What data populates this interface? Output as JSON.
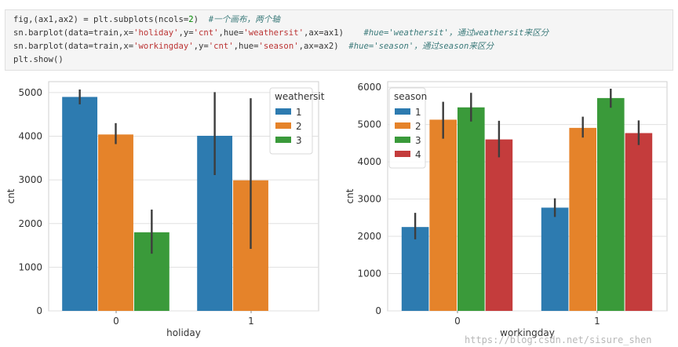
{
  "code": {
    "lines": [
      {
        "segments": [
          {
            "t": "fig,(ax1,ax2) = plt.subplots(ncols=",
            "c": ""
          },
          {
            "t": "2",
            "c": "num"
          },
          {
            "t": ")  ",
            "c": ""
          },
          {
            "t": "#一个画布，两个轴",
            "c": "cm"
          }
        ]
      },
      {
        "segments": [
          {
            "t": "sn.barplot(data=train,x=",
            "c": ""
          },
          {
            "t": "'holiday'",
            "c": "str"
          },
          {
            "t": ",y=",
            "c": ""
          },
          {
            "t": "'cnt'",
            "c": "str"
          },
          {
            "t": ",hue=",
            "c": ""
          },
          {
            "t": "'weathersit'",
            "c": "str"
          },
          {
            "t": ",ax=ax1)    ",
            "c": ""
          },
          {
            "t": "#hue='weathersit'，通过weathersit来区分",
            "c": "cm"
          }
        ]
      },
      {
        "segments": [
          {
            "t": "sn.barplot(data=train,x=",
            "c": ""
          },
          {
            "t": "'workingday'",
            "c": "str"
          },
          {
            "t": ",y=",
            "c": ""
          },
          {
            "t": "'cnt'",
            "c": "str"
          },
          {
            "t": ",hue=",
            "c": ""
          },
          {
            "t": "'season'",
            "c": "str"
          },
          {
            "t": ",ax=ax2)  ",
            "c": ""
          },
          {
            "t": "#hue='season'，通过season来区分",
            "c": "cm"
          }
        ]
      },
      {
        "segments": [
          {
            "t": "plt.show()",
            "c": ""
          }
        ]
      }
    ]
  },
  "watermark": "https://blog.csdn.net/sisure_shen",
  "colors": {
    "blue": "#1f77b4",
    "orange": "#ff7f0e",
    "green": "#2ca02c",
    "red": "#d62728",
    "bar_blue": "#2d7bb0",
    "bar_orange": "#e5832a",
    "bar_green": "#3a9a3a",
    "bar_red": "#c43c3c",
    "grid": "#e0e0e0",
    "errbar": "#3d3d3d"
  },
  "chart_data": [
    {
      "type": "bar",
      "xlabel": "holiday",
      "ylabel": "cnt",
      "ylim": [
        0,
        5250
      ],
      "yticks": [
        0,
        1000,
        2000,
        3000,
        4000,
        5000
      ],
      "categories": [
        "0",
        "1"
      ],
      "grid": true,
      "legend": {
        "title": "weathersit",
        "placement": "top-right"
      },
      "series": [
        {
          "name": "1",
          "color": "bar_blue",
          "values": [
            4900,
            4010
          ],
          "err_low": [
            4730,
            3110
          ],
          "err_high": [
            5070,
            5010
          ]
        },
        {
          "name": "2",
          "color": "bar_orange",
          "values": [
            4040,
            2990
          ],
          "err_low": [
            3820,
            1420
          ],
          "err_high": [
            4300,
            4870
          ]
        },
        {
          "name": "3",
          "color": "bar_green",
          "values": [
            1800,
            null
          ],
          "err_low": [
            1310,
            null
          ],
          "err_high": [
            2320,
            null
          ]
        }
      ]
    },
    {
      "type": "bar",
      "xlabel": "workingday",
      "ylabel": "cnt",
      "ylim": [
        0,
        6150
      ],
      "yticks": [
        0,
        1000,
        2000,
        3000,
        4000,
        5000,
        6000
      ],
      "categories": [
        "0",
        "1"
      ],
      "grid": true,
      "legend": {
        "title": "season",
        "placement": "top-left"
      },
      "series": [
        {
          "name": "1",
          "color": "bar_blue",
          "values": [
            2250,
            2770
          ],
          "err_low": [
            1920,
            2520
          ],
          "err_high": [
            2630,
            3020
          ]
        },
        {
          "name": "2",
          "color": "bar_orange",
          "values": [
            5130,
            4910
          ],
          "err_low": [
            4620,
            4650
          ],
          "err_high": [
            5610,
            5210
          ]
        },
        {
          "name": "3",
          "color": "bar_green",
          "values": [
            5460,
            5710
          ],
          "err_low": [
            5080,
            5450
          ],
          "err_high": [
            5850,
            5960
          ]
        },
        {
          "name": "4",
          "color": "bar_red",
          "values": [
            4600,
            4770
          ],
          "err_low": [
            4120,
            4450
          ],
          "err_high": [
            5100,
            5110
          ]
        }
      ]
    }
  ]
}
